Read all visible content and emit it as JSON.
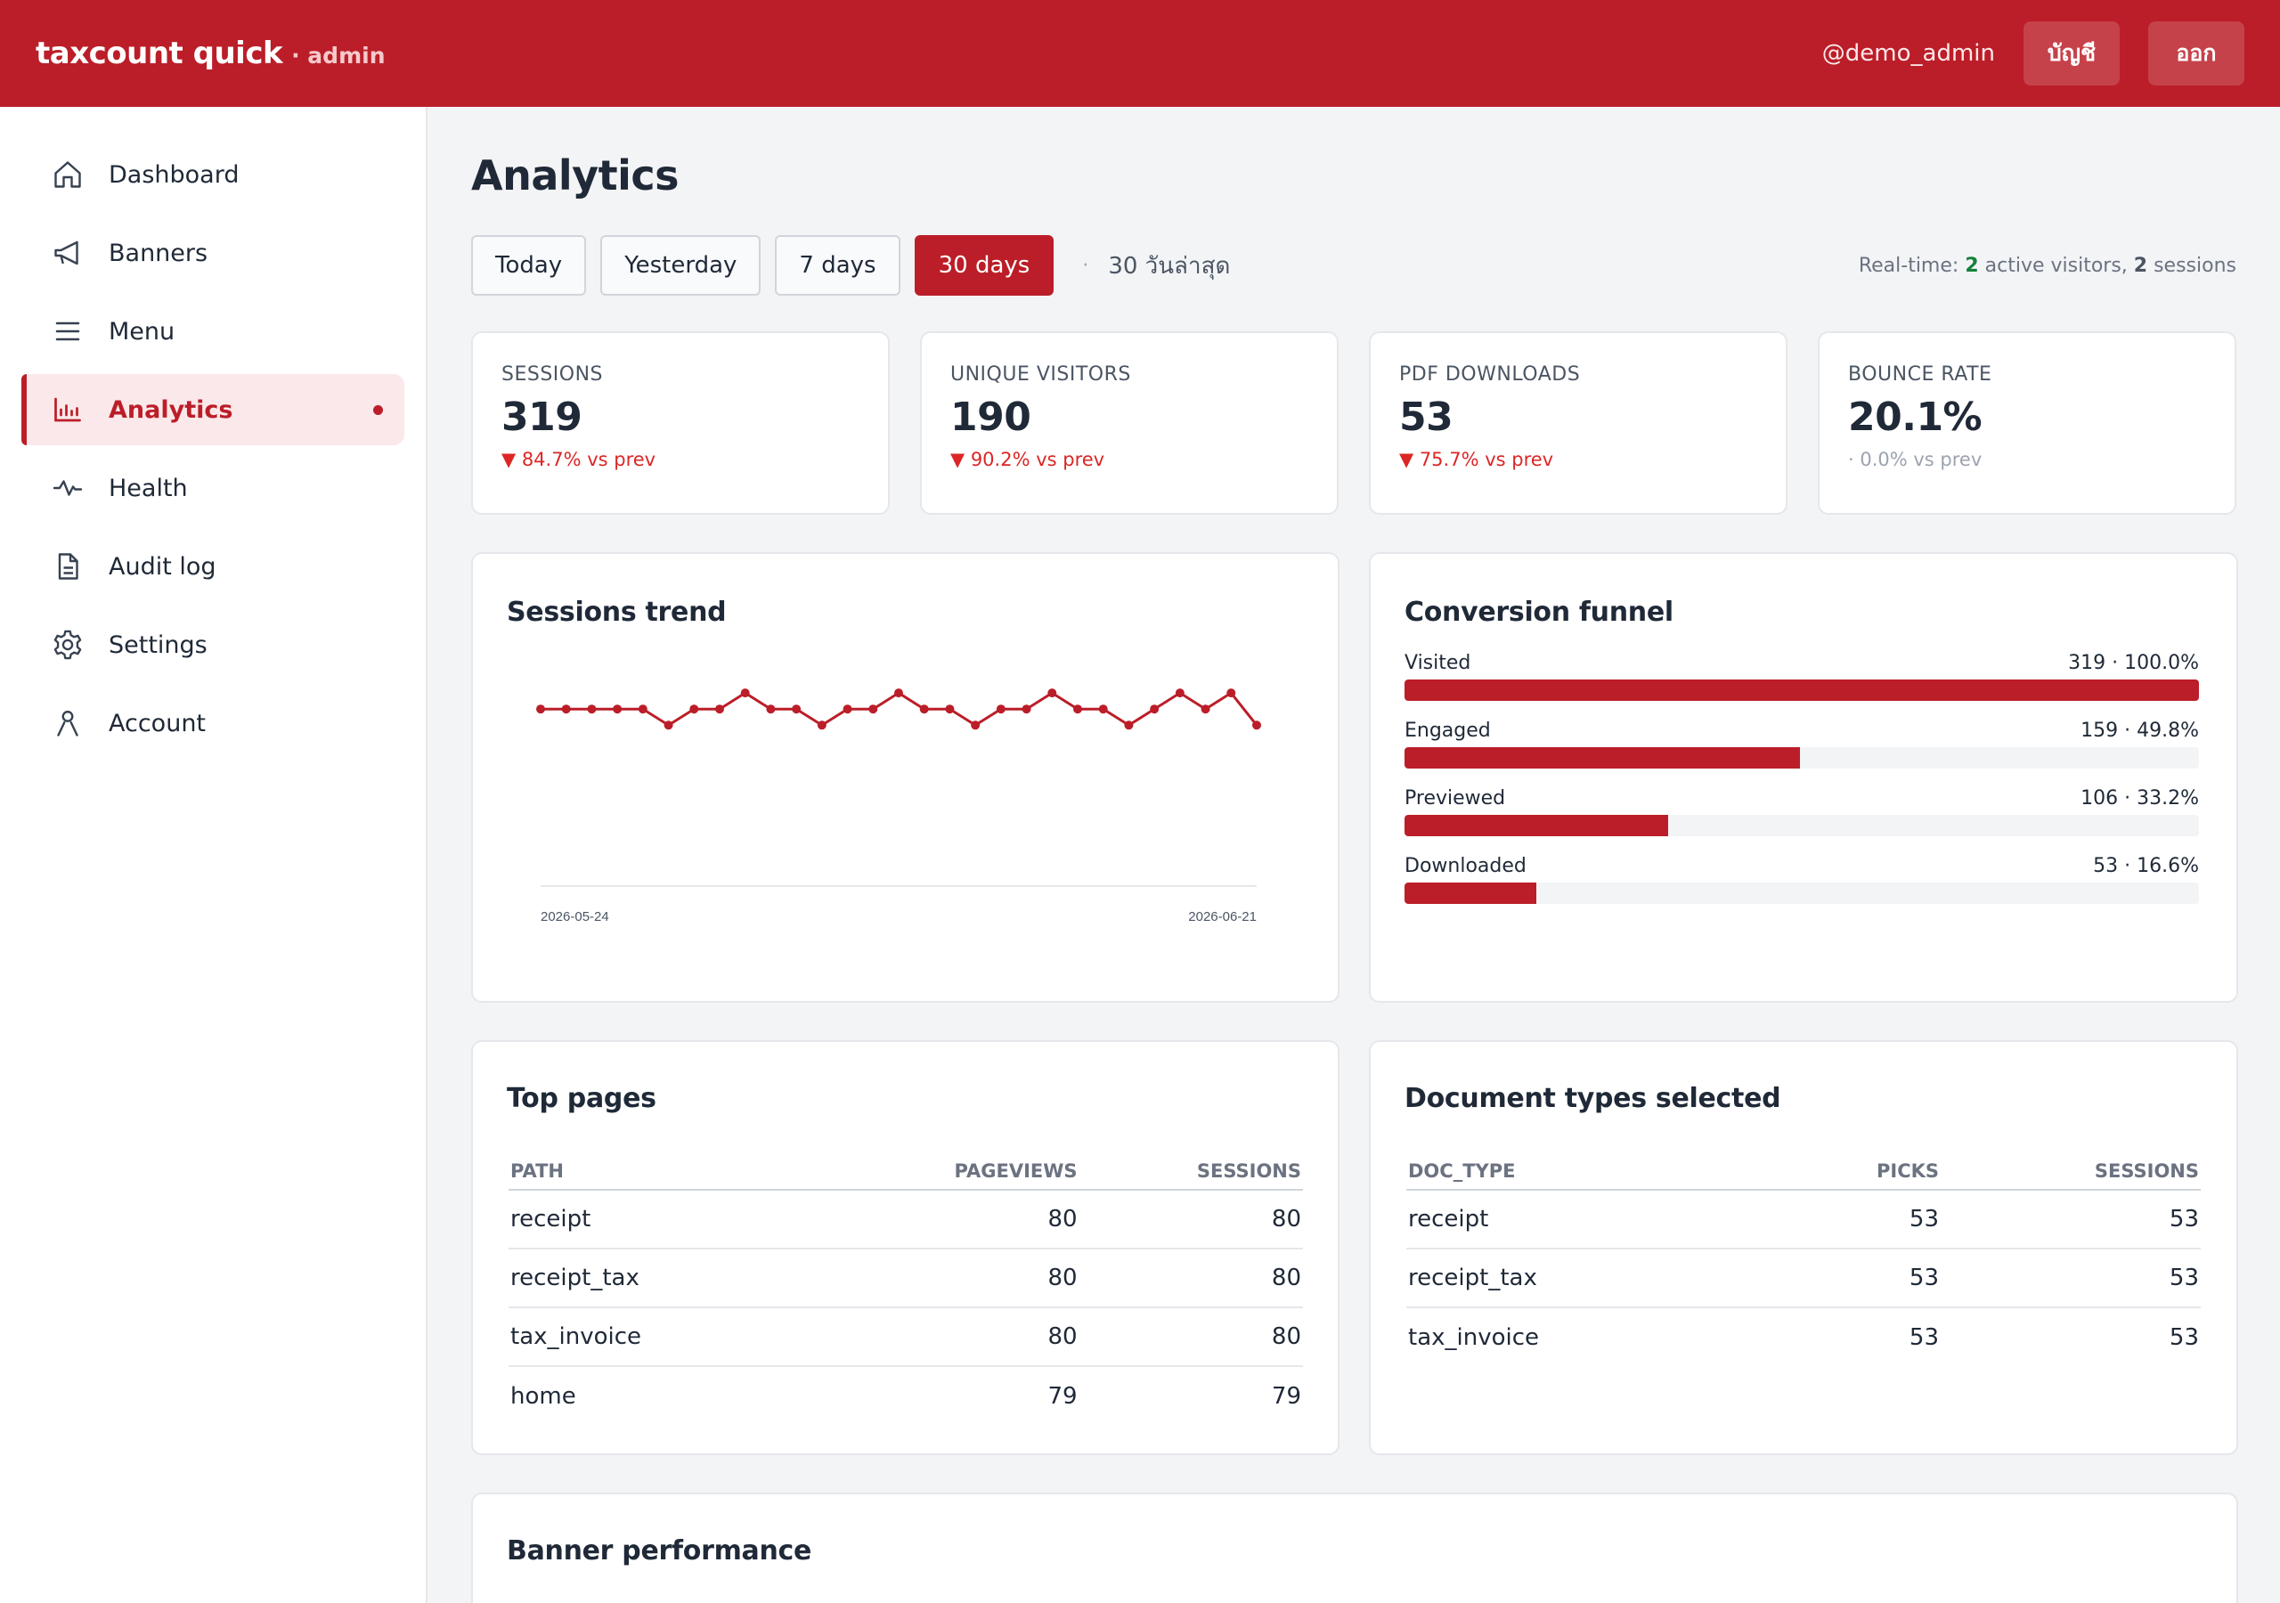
{
  "app": {
    "brand_name": "taxcount quick",
    "brand_sub": "· admin",
    "user_handle": "@demo_admin",
    "account_button": "บัญชี",
    "logout_button": "ออก"
  },
  "sidebar": {
    "items": [
      {
        "label": "Dashboard",
        "icon": "home-icon"
      },
      {
        "label": "Banners",
        "icon": "megaphone-icon"
      },
      {
        "label": "Menu",
        "icon": "menu-icon"
      },
      {
        "label": "Analytics",
        "icon": "bar-chart-icon",
        "active": true
      },
      {
        "label": "Health",
        "icon": "pulse-icon"
      },
      {
        "label": "Audit log",
        "icon": "document-icon"
      },
      {
        "label": "Settings",
        "icon": "gear-icon"
      },
      {
        "label": "Account",
        "icon": "user-icon"
      }
    ]
  },
  "page": {
    "title": "Analytics"
  },
  "range": {
    "buttons": [
      "Today",
      "Yesterday",
      "7 days",
      "30 days"
    ],
    "active": "30 days",
    "separator": "·",
    "label": "30 วันล่าสุด"
  },
  "realtime": {
    "prefix": "Real-time:",
    "active_visitors": "2",
    "active_visitors_label": "active visitors,",
    "sessions": "2",
    "sessions_label": "sessions"
  },
  "kpis": [
    {
      "label": "SESSIONS",
      "value": "319",
      "delta": "▼ 84.7% vs prev",
      "trend": "down"
    },
    {
      "label": "UNIQUE VISITORS",
      "value": "190",
      "delta": "▼ 90.2% vs prev",
      "trend": "down"
    },
    {
      "label": "PDF DOWNLOADS",
      "value": "53",
      "delta": "▼ 75.7% vs prev",
      "trend": "down"
    },
    {
      "label": "BOUNCE RATE",
      "value": "20.1%",
      "delta": "· 0.0% vs prev",
      "trend": "flat"
    }
  ],
  "sessions_trend": {
    "title": "Sessions trend"
  },
  "chart_data": {
    "type": "line",
    "title": "Sessions trend",
    "x_start_label": "2026-05-24",
    "x_end_label": "2026-06-21",
    "y": [
      11,
      11,
      11,
      11,
      11,
      10,
      11,
      11,
      12,
      11,
      11,
      10,
      11,
      11,
      12,
      11,
      11,
      10,
      11,
      11,
      12,
      11,
      11,
      10,
      11,
      12,
      11,
      12,
      10
    ],
    "ylim": [
      0,
      14
    ],
    "color": "#bb1e28",
    "grid": false
  },
  "funnel": {
    "title": "Conversion funnel",
    "steps": [
      {
        "label": "Visited",
        "value_text": "319 · 100.0%",
        "pct": 100.0
      },
      {
        "label": "Engaged",
        "value_text": "159 · 49.8%",
        "pct": 49.8
      },
      {
        "label": "Previewed",
        "value_text": "106 · 33.2%",
        "pct": 33.2
      },
      {
        "label": "Downloaded",
        "value_text": "53 · 16.6%",
        "pct": 16.6
      }
    ]
  },
  "top_pages": {
    "title": "Top pages",
    "columns": [
      "PATH",
      "PAGEVIEWS",
      "SESSIONS"
    ],
    "rows": [
      [
        "receipt",
        "80",
        "80"
      ],
      [
        "receipt_tax",
        "80",
        "80"
      ],
      [
        "tax_invoice",
        "80",
        "80"
      ],
      [
        "home",
        "79",
        "79"
      ]
    ]
  },
  "doc_types": {
    "title": "Document types selected",
    "columns": [
      "DOC_TYPE",
      "PICKS",
      "SESSIONS"
    ],
    "rows": [
      [
        "receipt",
        "53",
        "53"
      ],
      [
        "receipt_tax",
        "53",
        "53"
      ],
      [
        "tax_invoice",
        "53",
        "53"
      ]
    ]
  },
  "banner_performance": {
    "title": "Banner performance"
  },
  "colors": {
    "accent": "#bb1e28",
    "negative": "#dc2626",
    "positive": "#15803d"
  }
}
